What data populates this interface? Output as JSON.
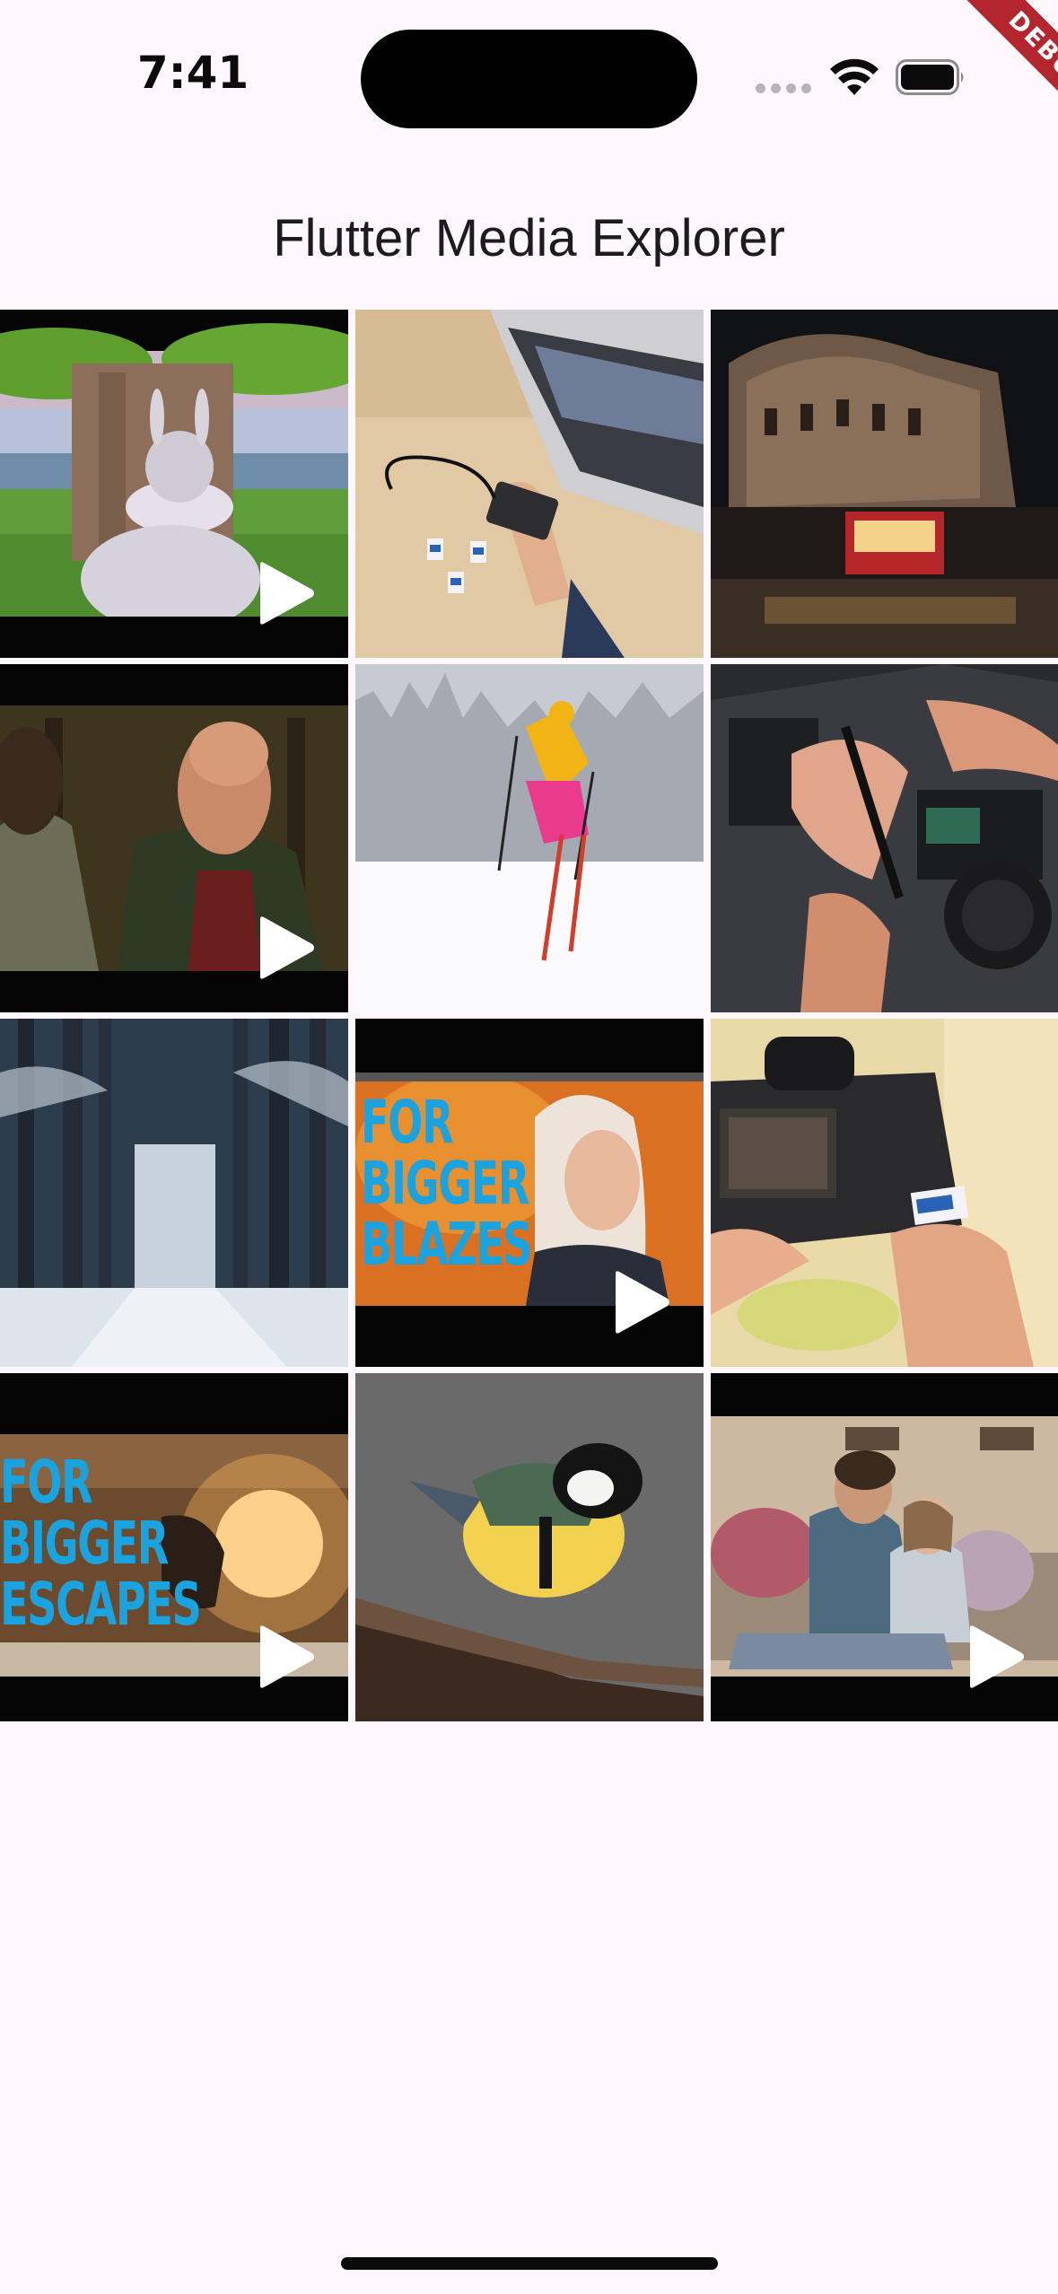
{
  "status_bar": {
    "time": "7:41"
  },
  "debug_banner": {
    "label": "DEBUG"
  },
  "app_bar": {
    "title": "Flutter Media Explorer"
  },
  "media": [
    {
      "kind": "video",
      "subject": "animated-rabbit-under-tree",
      "text": ""
    },
    {
      "kind": "image",
      "subject": "laptop-with-external-ssd",
      "text": ""
    },
    {
      "kind": "image",
      "subject": "mosque-at-night-with-food-cart",
      "text": ""
    },
    {
      "kind": "video",
      "subject": "animated-old-man-scene",
      "text": ""
    },
    {
      "kind": "image",
      "subject": "skier-jumping-in-snow",
      "text": ""
    },
    {
      "kind": "image",
      "subject": "laptop-repair-with-screwdriver",
      "text": ""
    },
    {
      "kind": "image",
      "subject": "snowy-forest-road",
      "text": ""
    },
    {
      "kind": "video",
      "subject": "for-bigger-blazes-promo",
      "text": "FOR BIGGER BLAZES"
    },
    {
      "kind": "image",
      "subject": "camera-with-memory-card",
      "text": ""
    },
    {
      "kind": "video",
      "subject": "for-bigger-escapes-promo",
      "text": "FOR BIGGER ESCAPES"
    },
    {
      "kind": "image",
      "subject": "great-tit-bird-on-branch",
      "text": ""
    },
    {
      "kind": "video",
      "subject": "father-and-daughter-on-couch",
      "text": ""
    }
  ],
  "colors": {
    "background": "#FEF7FC",
    "title_text": "#1D1B20",
    "debug_ribbon": "#B3262D",
    "promo_text": "#1AA3DE"
  }
}
